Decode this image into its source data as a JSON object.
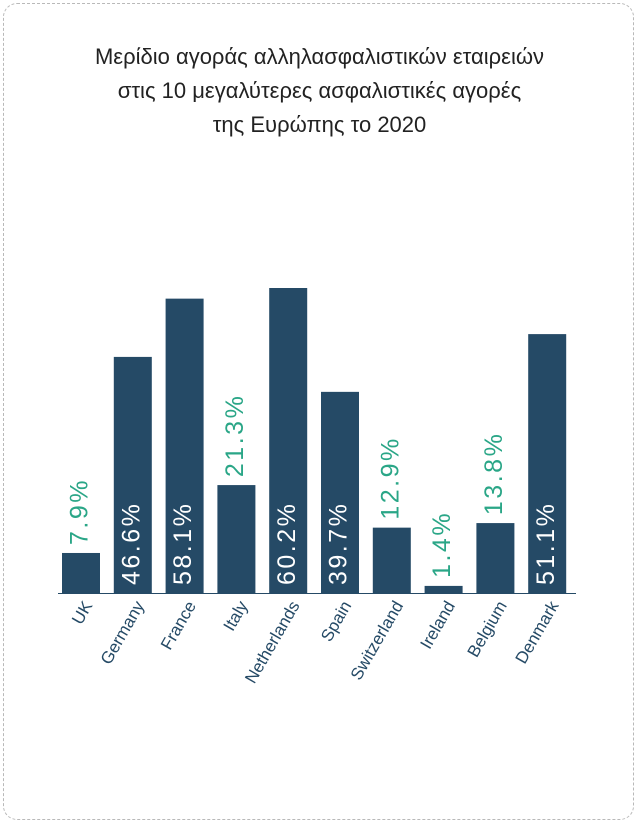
{
  "title_lines": [
    "Μερίδιο αγοράς αλληλασφαλιστικών εταιρειών",
    "στις 10 μεγαλύτερες ασφαλιστικές αγορές",
    "της Ευρώπης το 2020"
  ],
  "colors": {
    "bar": "#254a66",
    "label_inside": "#ffffff",
    "label_outside": "#2aa687",
    "axis_text": "#254a66"
  },
  "chart_data": {
    "type": "bar",
    "title": "Μερίδιο αγοράς αλληλασφαλιστικών εταιρειών στις 10 μεγαλύτερες ασφαλιστικές αγορές της Ευρώπης το 2020",
    "categories": [
      "UK",
      "Germany",
      "France",
      "Italy",
      "Netherlands",
      "Spain",
      "Switzerland",
      "Ireland",
      "Belgium",
      "Denmark"
    ],
    "values": [
      7.9,
      46.6,
      58.1,
      21.3,
      60.2,
      39.7,
      12.9,
      1.4,
      13.8,
      51.1
    ],
    "labels": [
      "7.9%",
      "46.6%",
      "58.1%",
      "21.3%",
      "60.2%",
      "39.7%",
      "12.9%",
      "1.4%",
      "13.8%",
      "51.1%"
    ],
    "label_inside": [
      false,
      true,
      true,
      false,
      true,
      true,
      false,
      false,
      false,
      true
    ],
    "xlabel": "",
    "ylabel": "",
    "ylim": [
      0,
      60.2
    ],
    "grid": false,
    "legend": "none"
  }
}
